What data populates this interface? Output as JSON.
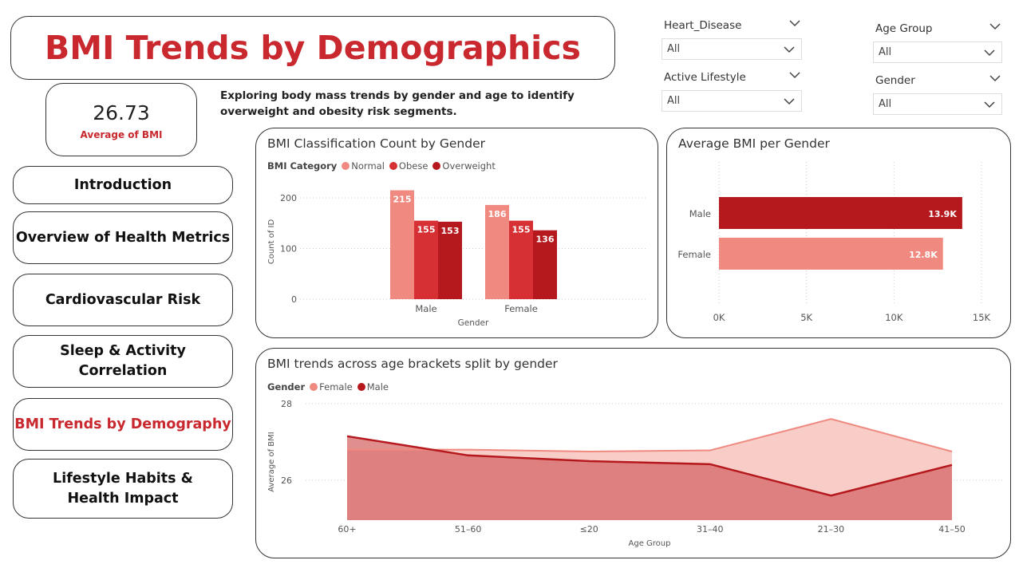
{
  "header": {
    "title": "BMI Trends by Demographics"
  },
  "kpi": {
    "value": "26.73",
    "label": "Average of BMI"
  },
  "subtitle": "Exploring body mass trends by gender and age to identify overweight and obesity risk segments.",
  "nav": [
    {
      "label": "Introduction"
    },
    {
      "label": "Overview of Health Metrics"
    },
    {
      "label": "Cardiovascular Risk"
    },
    {
      "label": "Sleep & Activity Correlation"
    },
    {
      "label": "BMI Trends by Demography",
      "active": true
    },
    {
      "label": "Lifestyle Habits & Health Impact"
    }
  ],
  "slicers": {
    "heart_disease": {
      "title": "Heart_Disease",
      "value": "All"
    },
    "active_lifestyle": {
      "title": "Active Lifestyle",
      "value": "All"
    },
    "age_group": {
      "title": "Age Group",
      "value": "All"
    },
    "gender": {
      "title": "Gender",
      "value": "All"
    }
  },
  "colors": {
    "accent": "#c8282e",
    "normal": "#f08a80",
    "obese": "#d63034",
    "overweight": "#b5191d",
    "female": "#f08a80",
    "male": "#b5191d"
  },
  "chart_data": [
    {
      "id": "bmi_class",
      "type": "bar",
      "title": "BMI Classification Count by Gender",
      "legend_title": "BMI Category",
      "legend_position": "top-left",
      "categories": [
        "Male",
        "Female"
      ],
      "series": [
        {
          "name": "Normal",
          "values": [
            215,
            186
          ]
        },
        {
          "name": "Obese",
          "values": [
            155,
            155
          ]
        },
        {
          "name": "Overweight",
          "values": [
            153,
            136
          ]
        }
      ],
      "xlabel": "Gender",
      "ylabel": "Count of ID",
      "yticks": [
        "0",
        "100",
        "200"
      ],
      "ylim": [
        0,
        230
      ],
      "grid": true
    },
    {
      "id": "avg_bmi_gender",
      "type": "bar",
      "orientation": "horizontal",
      "title": "Average BMI per Gender",
      "categories": [
        "Male",
        "Female"
      ],
      "values": [
        13900,
        12800
      ],
      "value_labels": [
        "13.9K",
        "12.8K"
      ],
      "xticks": [
        "0K",
        "5K",
        "10K",
        "15K"
      ],
      "xlim": [
        0,
        15000
      ],
      "grid": true
    },
    {
      "id": "bmi_age",
      "type": "area",
      "title": "BMI trends across age brackets split by gender",
      "legend_title": "Gender",
      "legend_position": "top-left",
      "categories": [
        "60+",
        "51–60",
        "≤20",
        "31–40",
        "21–30",
        "41–50"
      ],
      "series": [
        {
          "name": "Female",
          "values": [
            26.8,
            26.8,
            26.75,
            26.78,
            27.6,
            26.75
          ]
        },
        {
          "name": "Male",
          "values": [
            27.15,
            26.65,
            26.5,
            26.42,
            25.6,
            26.4
          ]
        }
      ],
      "xlabel": "Age Group",
      "ylabel": "Average of BMI",
      "yticks": [
        "26",
        "28"
      ],
      "ylim": [
        25,
        28
      ],
      "grid": true
    }
  ]
}
